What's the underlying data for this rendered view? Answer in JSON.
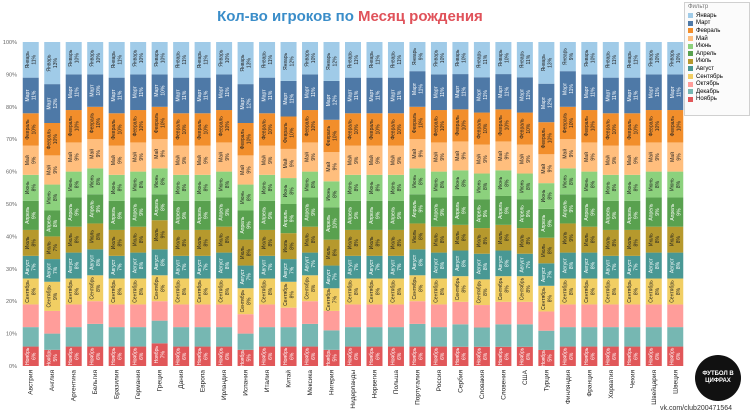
{
  "header": {
    "title_prefix": "Кол-во игроков по ",
    "title_highlight": "Месяц рождения"
  },
  "legend": {
    "title": "Фильтр"
  },
  "watermark": {
    "logo_text": "ФУТБОЛ В ЦИФРАХ",
    "credit": "vk.com/club200471564"
  },
  "colors": {
    "title": "#3a8dc9",
    "highlight": "#e0525a"
  },
  "chart_data": {
    "type": "bar",
    "stacked": true,
    "normalized": true,
    "title": "Кол-во игроков по Месяц рождения",
    "ylim": [
      0,
      100
    ],
    "yticks": [
      "0%",
      "10%",
      "20%",
      "30%",
      "40%",
      "50%",
      "60%",
      "70%",
      "80%",
      "90%",
      "100%"
    ],
    "legend_position": "top-right",
    "categories": [
      "Австрия",
      "Англия",
      "Аргентина",
      "Бельгия",
      "Бразилия",
      "Германия",
      "Греция",
      "Дания",
      "Европа",
      "Ирландия",
      "Испания",
      "Италия",
      "Китай",
      "Мексика",
      "Нигерия",
      "Нидерланды",
      "Норвегия",
      "Польша",
      "Португалия",
      "Россия",
      "Сербия",
      "Словакия",
      "Словения",
      "США",
      "Турция",
      "Финляндия",
      "Франция",
      "Хорватия",
      "Чехия",
      "Швейцария",
      "Швеция"
    ],
    "series": [
      {
        "name": "Ноябрь",
        "color": "#e15759",
        "values": [
          6,
          5,
          6,
          6,
          6,
          6,
          7,
          6,
          6,
          6,
          5,
          6,
          6,
          6,
          5,
          6,
          6,
          6,
          6,
          6,
          6,
          6,
          6,
          6,
          5,
          6,
          6,
          6,
          6,
          6,
          6
        ]
      },
      {
        "name": "Декабрь",
        "color": "#76b7b2",
        "values": [
          6,
          5,
          6,
          7,
          6,
          6,
          7,
          6,
          6,
          6,
          5,
          6,
          6,
          7,
          6,
          6,
          6,
          6,
          7,
          6,
          7,
          6,
          7,
          7,
          6,
          6,
          6,
          6,
          6,
          6,
          6
        ]
      },
      {
        "name": "Октябрь",
        "color": "#ff9d9a",
        "values": [
          7,
          7,
          7,
          7,
          7,
          7,
          6,
          7,
          7,
          7,
          6,
          7,
          6,
          7,
          6,
          7,
          7,
          7,
          7,
          7,
          7,
          7,
          7,
          7,
          6,
          7,
          7,
          7,
          7,
          7,
          7
        ]
      },
      {
        "name": "Сентябрь",
        "color": "#f1ce63",
        "values": [
          8,
          9,
          8,
          8,
          8,
          8,
          8,
          8,
          8,
          8,
          8,
          8,
          8,
          8,
          7,
          8,
          8,
          8,
          8,
          8,
          8,
          8,
          8,
          8,
          8,
          8,
          8,
          8,
          8,
          8,
          8
        ]
      },
      {
        "name": "Август",
        "color": "#499894",
        "values": [
          7,
          7,
          8,
          8,
          7,
          8,
          8,
          7,
          7,
          8,
          7,
          7,
          7,
          7,
          7,
          7,
          7,
          7,
          8,
          8,
          8,
          8,
          8,
          7,
          7,
          8,
          8,
          7,
          7,
          8,
          8
        ]
      },
      {
        "name": "Июль",
        "color": "#b6992d",
        "values": [
          8,
          7,
          8,
          8,
          8,
          8,
          9,
          8,
          8,
          8,
          8,
          8,
          8,
          8,
          8,
          8,
          8,
          8,
          8,
          8,
          8,
          8,
          8,
          8,
          8,
          9,
          8,
          8,
          8,
          8,
          8
        ]
      },
      {
        "name": "Апрель",
        "color": "#59a14f",
        "values": [
          9,
          8,
          9,
          9,
          9,
          9,
          8,
          9,
          9,
          9,
          9,
          9,
          9,
          9,
          10,
          9,
          9,
          9,
          9,
          9,
          9,
          9,
          9,
          9,
          9,
          9,
          9,
          9,
          9,
          9,
          9
        ]
      },
      {
        "name": "Июнь",
        "color": "#8cd17d",
        "values": [
          8,
          8,
          8,
          8,
          8,
          8,
          8,
          8,
          8,
          8,
          8,
          8,
          8,
          8,
          8,
          8,
          8,
          8,
          8,
          8,
          8,
          8,
          8,
          8,
          8,
          8,
          8,
          8,
          8,
          8,
          8
        ]
      },
      {
        "name": "Май",
        "color": "#ffbe7d",
        "values": [
          9,
          9,
          9,
          9,
          9,
          9,
          9,
          9,
          9,
          9,
          9,
          9,
          9,
          9,
          9,
          9,
          9,
          9,
          9,
          9,
          9,
          9,
          9,
          9,
          9,
          9,
          9,
          9,
          9,
          9,
          9
        ]
      },
      {
        "name": "Февраль",
        "color": "#f28e2b",
        "values": [
          10,
          10,
          10,
          10,
          10,
          10,
          10,
          10,
          10,
          10,
          10,
          10,
          10,
          10,
          10,
          10,
          10,
          10,
          10,
          10,
          10,
          10,
          10,
          10,
          10,
          10,
          10,
          10,
          10,
          10,
          10
        ]
      },
      {
        "name": "Март",
        "color": "#4e79a7",
        "values": [
          11,
          12,
          11,
          10,
          11,
          11,
          10,
          11,
          11,
          11,
          12,
          11,
          11,
          11,
          12,
          11,
          11,
          11,
          11,
          11,
          11,
          11,
          11,
          11,
          12,
          11,
          11,
          11,
          11,
          11,
          11
        ]
      },
      {
        "name": "Январь",
        "color": "#a0cbe8",
        "values": [
          11,
          13,
          10,
          10,
          11,
          10,
          10,
          11,
          11,
          10,
          13,
          11,
          12,
          10,
          12,
          11,
          11,
          11,
          9,
          10,
          10,
          11,
          10,
          11,
          13,
          9,
          10,
          11,
          11,
          10,
          10
        ]
      }
    ]
  }
}
